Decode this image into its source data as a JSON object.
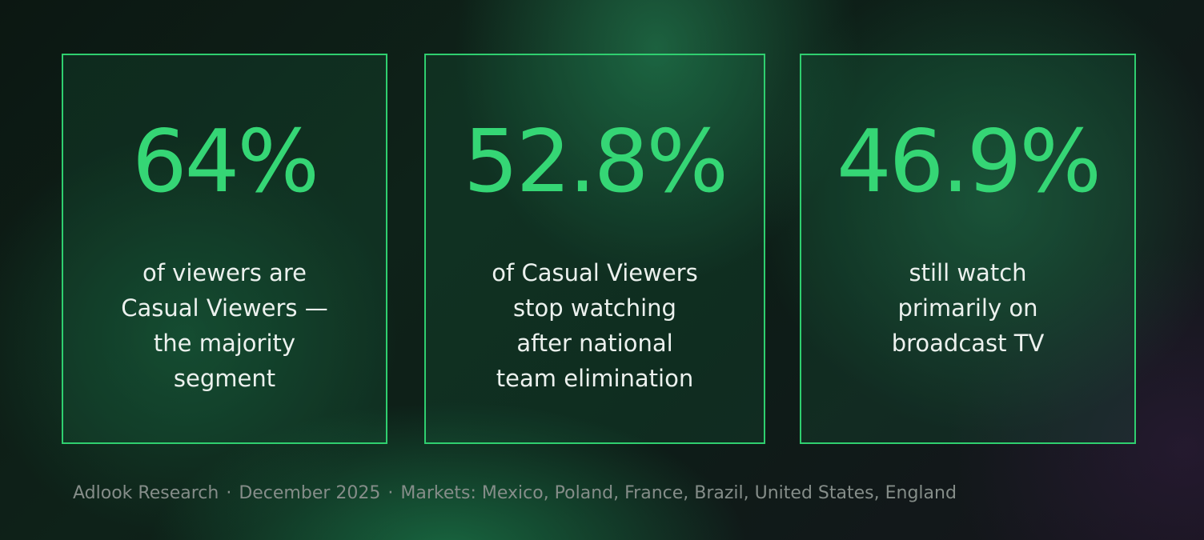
{
  "stats": [
    {
      "value": "64%",
      "description": "of viewers are\nCasual Viewers —\nthe majority\nsegment"
    },
    {
      "value": "52.8%",
      "description": "of Casual Viewers\nstop watching\nafter national\nteam elimination"
    },
    {
      "value": "46.9%",
      "description": "still watch\nprimarily on\nbroadcast TV"
    }
  ],
  "footer": {
    "source": "Adlook Research",
    "date": "December 2025",
    "markets": "Markets: Mexico, Poland, France, Brazil, United States, England",
    "separator": "·"
  },
  "colors": {
    "accent": "#35d675",
    "border": "#2fcf6f",
    "text": "#ecf1ee",
    "muted": "#858d89"
  }
}
